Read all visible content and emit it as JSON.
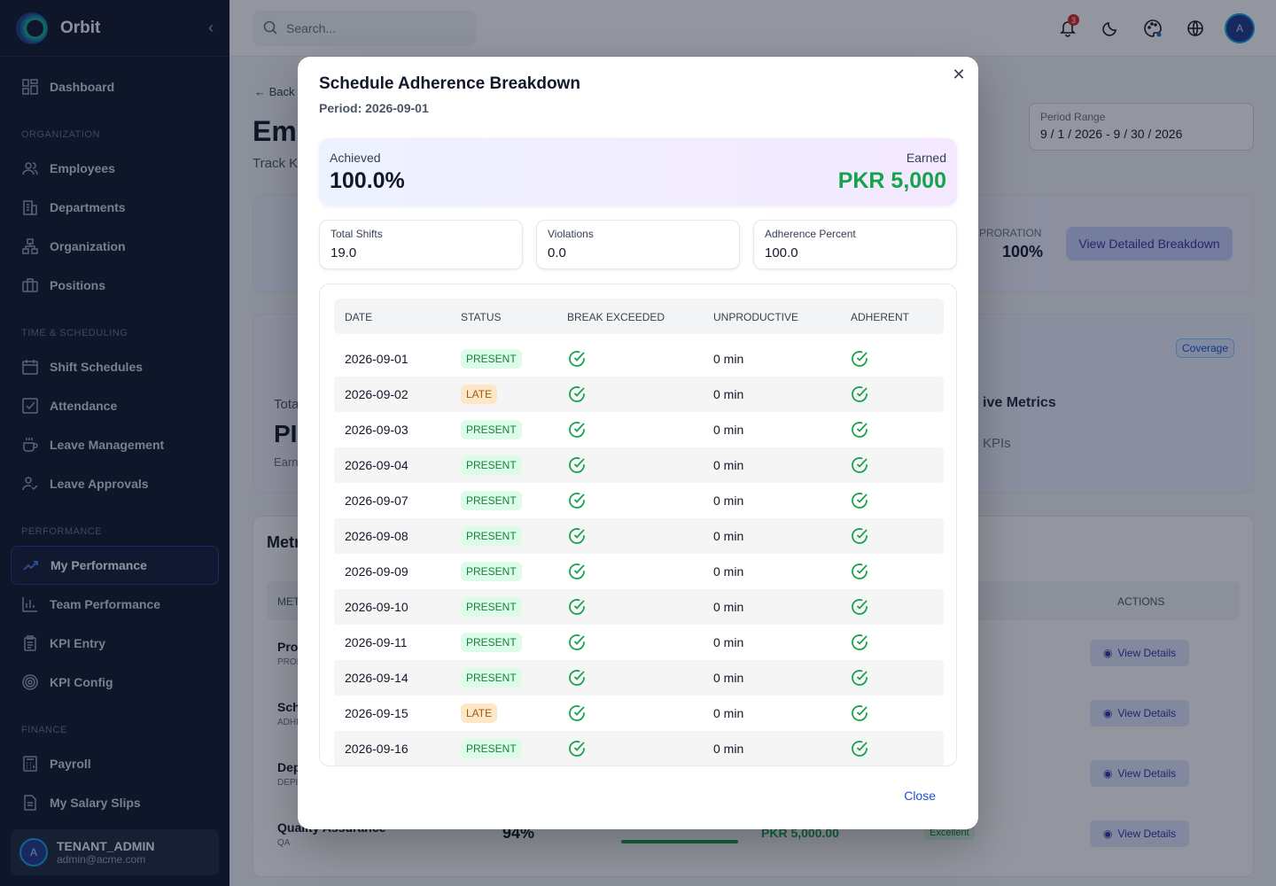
{
  "app": {
    "brand": "Orbit"
  },
  "sidebar": {
    "dashboard": "Dashboard",
    "sections": {
      "organization": "ORGANIZATION",
      "time": "TIME & SCHEDULING",
      "performance": "PERFORMANCE",
      "finance": "FINANCE"
    },
    "items": {
      "employees": "Employees",
      "departments": "Departments",
      "organization": "Organization",
      "positions": "Positions",
      "shift_schedules": "Shift Schedules",
      "attendance": "Attendance",
      "leave_management": "Leave Management",
      "leave_approvals": "Leave Approvals",
      "my_performance": "My Performance",
      "team_performance": "Team Performance",
      "kpi_entry": "KPI Entry",
      "kpi_config": "KPI Config",
      "payroll": "Payroll",
      "my_salary_slips": "My Salary Slips"
    },
    "user": {
      "initial": "A",
      "name": "TENANT_ADMIN",
      "email": "admin@acme.com"
    }
  },
  "topbar": {
    "search_placeholder": "Search...",
    "notification_count": "3",
    "avatar_initial": "A"
  },
  "page": {
    "back": "Back",
    "title": "Emp",
    "subtitle": "Track KI",
    "period_range_label": "Period Range",
    "period_start": "9 / 1 / 2026",
    "period_sep": "-",
    "period_end": "9 / 30 / 2026",
    "proration_label": "PRORATION",
    "proration_value": "100%",
    "view_breakdown": "View Detailed Breakdown",
    "coverage": "Coverage",
    "total_partial": "Tota",
    "pk_partial": "PI",
    "earn_partial": "Earn",
    "eff_title": "ive Metrics",
    "eff_sub": "KPIs",
    "metrics_title": "Metr",
    "met_partial": "MET",
    "actions_header": "ACTIONS",
    "view_details": "View Details",
    "rows": [
      {
        "name": "Pro",
        "code": "PROI"
      },
      {
        "name": "Sch",
        "code": "ADHI"
      },
      {
        "name": "Dep",
        "code": "DEPI"
      },
      {
        "name": "Quality Assurance",
        "code": "QA",
        "pct": "94%",
        "payout": "PKR 5,000.00",
        "rating": "Excellent",
        "progress": 1.0
      }
    ]
  },
  "modal": {
    "title": "Schedule Adherence Breakdown",
    "period": "Period: 2026-09-01",
    "achieved_label": "Achieved",
    "achieved_value": "100.0%",
    "earned_label": "Earned",
    "earned_value": "PKR 5,000",
    "stats": [
      {
        "label": "Total Shifts",
        "value": "19.0"
      },
      {
        "label": "Violations",
        "value": "0.0"
      },
      {
        "label": "Adherence Percent",
        "value": "100.0"
      }
    ],
    "columns": [
      "DATE",
      "STATUS",
      "BREAK EXCEEDED",
      "UNPRODUCTIVE",
      "ADHERENT"
    ],
    "rows": [
      {
        "date": "2026-09-01",
        "status": "PRESENT",
        "unproductive": "0 min"
      },
      {
        "date": "2026-09-02",
        "status": "LATE",
        "unproductive": "0 min"
      },
      {
        "date": "2026-09-03",
        "status": "PRESENT",
        "unproductive": "0 min"
      },
      {
        "date": "2026-09-04",
        "status": "PRESENT",
        "unproductive": "0 min"
      },
      {
        "date": "2026-09-07",
        "status": "PRESENT",
        "unproductive": "0 min"
      },
      {
        "date": "2026-09-08",
        "status": "PRESENT",
        "unproductive": "0 min"
      },
      {
        "date": "2026-09-09",
        "status": "PRESENT",
        "unproductive": "0 min"
      },
      {
        "date": "2026-09-10",
        "status": "PRESENT",
        "unproductive": "0 min"
      },
      {
        "date": "2026-09-11",
        "status": "PRESENT",
        "unproductive": "0 min"
      },
      {
        "date": "2026-09-14",
        "status": "PRESENT",
        "unproductive": "0 min"
      },
      {
        "date": "2026-09-15",
        "status": "LATE",
        "unproductive": "0 min"
      },
      {
        "date": "2026-09-16",
        "status": "PRESENT",
        "unproductive": "0 min"
      }
    ],
    "close": "Close"
  },
  "colors": {
    "accent": "#1d4ed8",
    "success": "#16a34a",
    "sidebar_bg": "#0f172a"
  }
}
